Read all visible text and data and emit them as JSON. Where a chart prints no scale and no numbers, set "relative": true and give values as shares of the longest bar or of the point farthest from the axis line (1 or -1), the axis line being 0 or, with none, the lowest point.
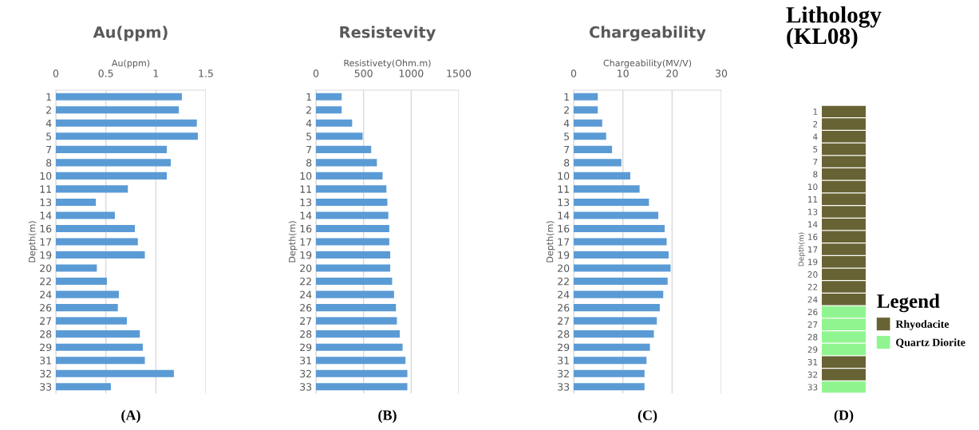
{
  "chart_data": [
    {
      "type": "bar",
      "orientation": "horizontal",
      "title": "Au(ppm)",
      "xlabel": "Au(ppm)",
      "ylabel": "Depth(m)",
      "annotations": [
        "(A)"
      ],
      "categories": [
        "1",
        "2",
        "4",
        "5",
        "7",
        "8",
        "10",
        "11",
        "13",
        "14",
        "16",
        "17",
        "19",
        "20",
        "22",
        "24",
        "26",
        "27",
        "28",
        "29",
        "31",
        "32",
        "33"
      ],
      "values": [
        1.26,
        1.23,
        1.41,
        1.42,
        1.11,
        1.15,
        1.11,
        0.72,
        0.4,
        0.59,
        0.79,
        0.82,
        0.89,
        0.41,
        0.51,
        0.63,
        0.62,
        0.71,
        0.84,
        0.87,
        0.89,
        1.18,
        0.55
      ],
      "color": "#5b9bd5",
      "xlim": [
        0,
        1.5
      ],
      "xticks": [
        0,
        0.5,
        1,
        1.5
      ],
      "grid": "x"
    },
    {
      "type": "bar",
      "orientation": "horizontal",
      "title": "Resistevity",
      "xlabel": "Resistivety(Ohm.m)",
      "ylabel": "Depth(m)",
      "annotations": [
        "(B)"
      ],
      "categories": [
        "1",
        "2",
        "4",
        "5",
        "7",
        "8",
        "10",
        "11",
        "13",
        "14",
        "16",
        "17",
        "19",
        "20",
        "22",
        "24",
        "26",
        "27",
        "28",
        "29",
        "31",
        "32",
        "33"
      ],
      "values": [
        270,
        270,
        380,
        490,
        580,
        640,
        700,
        740,
        750,
        760,
        770,
        770,
        780,
        780,
        800,
        820,
        840,
        850,
        880,
        910,
        940,
        960,
        960
      ],
      "color": "#5b9bd5",
      "xlim": [
        0,
        1500
      ],
      "xticks": [
        0,
        500,
        1000,
        1500
      ],
      "grid": "x"
    },
    {
      "type": "bar",
      "orientation": "horizontal",
      "title": "Chargeability",
      "xlabel": "Chargeability(MV/V)",
      "ylabel": "Depth(m)",
      "annotations": [
        "(C)"
      ],
      "categories": [
        "1",
        "2",
        "4",
        "5",
        "7",
        "8",
        "10",
        "11",
        "13",
        "14",
        "16",
        "17",
        "19",
        "20",
        "22",
        "24",
        "26",
        "27",
        "28",
        "29",
        "31",
        "32",
        "33"
      ],
      "values": [
        4.9,
        4.9,
        5.8,
        6.6,
        7.8,
        9.7,
        11.5,
        13.4,
        15.3,
        17.2,
        18.5,
        18.9,
        19.3,
        19.7,
        19.1,
        18.2,
        17.5,
        16.9,
        16.3,
        15.5,
        14.8,
        14.4,
        14.4
      ],
      "color": "#5b9bd5",
      "xlim": [
        0,
        30
      ],
      "xticks": [
        0,
        10,
        20,
        30
      ],
      "grid": "x"
    },
    {
      "type": "bar",
      "orientation": "horizontal",
      "stacked": true,
      "relative": true,
      "title": "Lithology\n(KL08)",
      "ylabel": "Depth(m)",
      "annotations": [
        "(D)"
      ],
      "legend_title": "Legend",
      "legend": "right",
      "tick_labels": "y",
      "categories": [
        "1",
        "2",
        "4",
        "5",
        "7",
        "8",
        "10",
        "11",
        "13",
        "14",
        "16",
        "17",
        "19",
        "20",
        "22",
        "24",
        "26",
        "27",
        "28",
        "29",
        "31",
        "32",
        "33"
      ],
      "series": [
        {
          "name": "Rhyodacite",
          "color": "#676334",
          "values": [
            1,
            1,
            1,
            1,
            1,
            1,
            1,
            1,
            1,
            1,
            1,
            1,
            1,
            1,
            1,
            1,
            null,
            null,
            null,
            null,
            1,
            1,
            null
          ]
        },
        {
          "name": "Quartz Diorite",
          "color": "#90f590",
          "values": [
            null,
            null,
            null,
            null,
            null,
            null,
            null,
            null,
            null,
            null,
            null,
            null,
            null,
            null,
            null,
            null,
            1,
            1,
            1,
            1,
            null,
            null,
            1
          ]
        }
      ]
    }
  ]
}
